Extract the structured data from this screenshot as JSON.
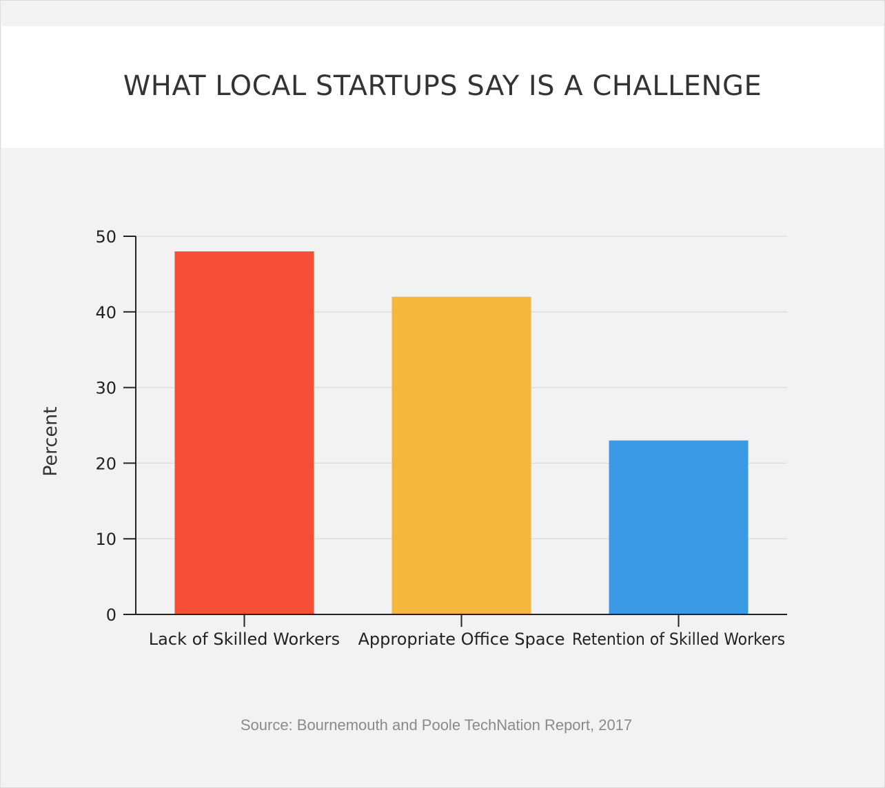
{
  "chart_data": {
    "type": "bar",
    "title": "WHAT LOCAL STARTUPS SAY IS A CHALLENGE",
    "categories": [
      "Lack of Skilled Workers",
      "Appropriate Office Space",
      "Retention of Skilled Workers"
    ],
    "values": [
      48,
      42,
      23
    ],
    "colors": [
      "#f44e36",
      "#f4b73d",
      "#3b99e6"
    ],
    "xlabel": "",
    "ylabel": "Percent",
    "ylim": [
      0,
      50
    ],
    "yticks": [
      0,
      10,
      20,
      30,
      40,
      50
    ],
    "grid": true,
    "legend": "none"
  },
  "source_note": "Source: Bournemouth and Poole TechNation Report, 2017"
}
